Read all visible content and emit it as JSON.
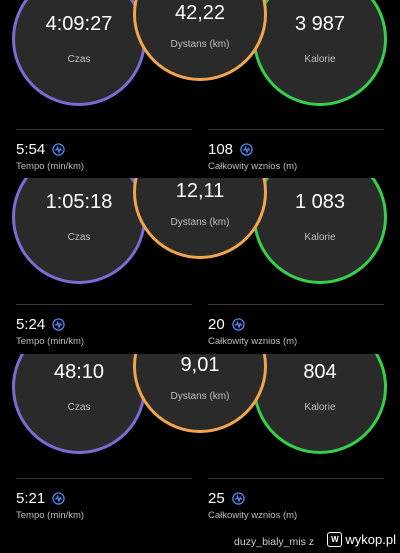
{
  "blocks": [
    {
      "time": "4:09:27",
      "time_label": "Czas",
      "distance": "42,22",
      "distance_label": "Dystans (km)",
      "calories": "3 987",
      "calories_label": "Kalorie",
      "pace": "5:54",
      "pace_label": "Tempo (min/km)",
      "ascent": "108",
      "ascent_label": "Całkowity wznios (m)"
    },
    {
      "time": "1:05:18",
      "time_label": "Czas",
      "distance": "12,11",
      "distance_label": "Dystans (km)",
      "calories": "1 083",
      "calories_label": "Kalorie",
      "pace": "5:24",
      "pace_label": "Tempo (min/km)",
      "ascent": "20",
      "ascent_label": "Całkowity wznios (m)"
    },
    {
      "time": "48:10",
      "time_label": "Czas",
      "distance": "9,01",
      "distance_label": "Dystans (km)",
      "calories": "804",
      "calories_label": "Kalorie",
      "pace": "5:21",
      "pace_label": "Tempo (min/km)",
      "ascent": "25",
      "ascent_label": "Całkowity wznios (m)"
    }
  ],
  "footer": {
    "author": "duzy_bialy_mis z",
    "site": "wykop.pl",
    "logo_letter": "W"
  },
  "colors": {
    "time_ring": "#7e6ad4",
    "distance_ring": "#f0a54b",
    "calories_ring": "#35d04a"
  },
  "icons": {
    "metric": "pulse-wave-icon"
  }
}
